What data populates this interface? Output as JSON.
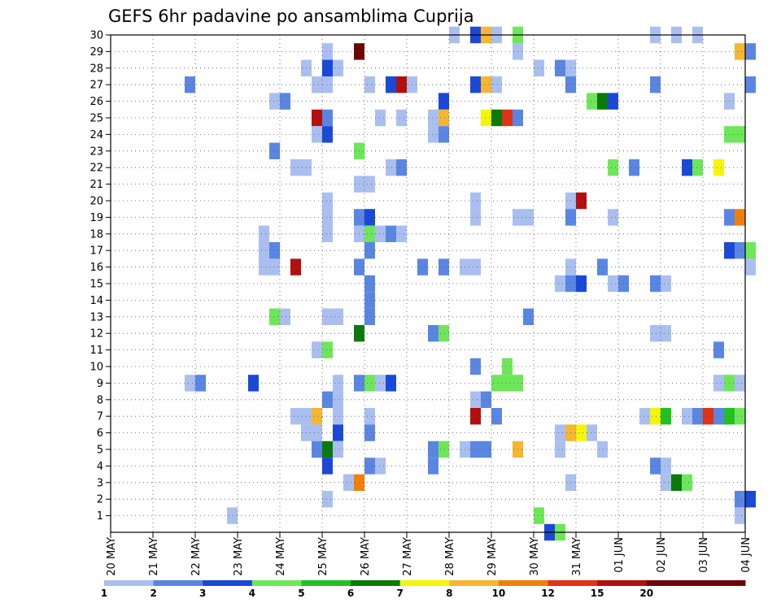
{
  "chart_data": {
    "type": "heatmap",
    "title": "GEFS 6hr padavine po ansamblima Cuprija",
    "xlabel": "",
    "ylabel": "",
    "x_tick_labels": [
      "20 MAY",
      "21 MAY",
      "22 MAY",
      "23 MAY",
      "24 MAY",
      "25 MAY",
      "26 MAY",
      "27 MAY",
      "28 MAY",
      "29 MAY",
      "30 MAY",
      "31 MAY",
      "01 JUN",
      "02 JUN",
      "03 JUN",
      "04 JUN"
    ],
    "x_range_days": [
      0,
      15
    ],
    "y_tick_labels": [
      "1",
      "2",
      "3",
      "4",
      "5",
      "6",
      "7",
      "8",
      "9",
      "10",
      "11",
      "12",
      "13",
      "14",
      "15",
      "16",
      "17",
      "18",
      "19",
      "20",
      "21",
      "22",
      "23",
      "24",
      "25",
      "26",
      "27",
      "28",
      "29",
      "30"
    ],
    "y_range": [
      0,
      30
    ],
    "grid": true,
    "legend": {
      "position": "bottom",
      "bins": [
        {
          "label": "1",
          "color": "#aabff0"
        },
        {
          "label": "2",
          "color": "#5a86e3"
        },
        {
          "label": "3",
          "color": "#1a48d8"
        },
        {
          "label": "4",
          "color": "#6ee65a"
        },
        {
          "label": "5",
          "color": "#1fc21f"
        },
        {
          "label": "6",
          "color": "#0a7a0a"
        },
        {
          "label": "7",
          "color": "#f5f50a"
        },
        {
          "label": "8",
          "color": "#f5b630"
        },
        {
          "label": "10",
          "color": "#f07f0a"
        },
        {
          "label": "12",
          "color": "#e03214"
        },
        {
          "label": "15",
          "color": "#b40f0f"
        },
        {
          "label": "20",
          "color": "#6e0505"
        },
        {
          "label": "",
          "color": "#6e0505"
        }
      ]
    },
    "cells": [
      [
        30,
        8.0,
        0
      ],
      [
        30,
        8.5,
        2
      ],
      [
        30,
        8.75,
        7
      ],
      [
        30,
        9.0,
        0
      ],
      [
        30,
        9.5,
        3
      ],
      [
        30,
        12.75,
        0
      ],
      [
        30,
        13.25,
        0
      ],
      [
        30,
        13.75,
        0
      ],
      [
        29,
        5.0,
        0
      ],
      [
        29,
        5.75,
        11
      ],
      [
        29,
        9.5,
        0
      ],
      [
        29,
        14.75,
        7
      ],
      [
        29,
        15.0,
        1
      ],
      [
        28,
        4.5,
        0
      ],
      [
        28,
        5.0,
        2
      ],
      [
        28,
        5.25,
        0
      ],
      [
        28,
        10.0,
        0
      ],
      [
        28,
        10.5,
        1
      ],
      [
        28,
        10.75,
        0
      ],
      [
        27,
        1.75,
        1
      ],
      [
        27,
        4.75,
        0
      ],
      [
        27,
        5.0,
        0
      ],
      [
        27,
        6.0,
        0
      ],
      [
        27,
        6.5,
        2
      ],
      [
        27,
        6.75,
        10
      ],
      [
        27,
        7.0,
        0
      ],
      [
        27,
        8.5,
        2
      ],
      [
        27,
        8.75,
        7
      ],
      [
        27,
        9.0,
        0
      ],
      [
        27,
        10.75,
        1
      ],
      [
        27,
        12.75,
        1
      ],
      [
        27,
        15.0,
        1
      ],
      [
        26,
        3.75,
        0
      ],
      [
        26,
        4.0,
        1
      ],
      [
        26,
        7.75,
        2
      ],
      [
        26,
        11.25,
        3
      ],
      [
        26,
        11.5,
        5
      ],
      [
        26,
        11.75,
        2
      ],
      [
        26,
        14.5,
        0
      ],
      [
        25,
        4.75,
        10
      ],
      [
        25,
        5.0,
        1
      ],
      [
        25,
        6.25,
        0
      ],
      [
        25,
        6.75,
        0
      ],
      [
        25,
        7.5,
        0
      ],
      [
        25,
        7.75,
        7
      ],
      [
        25,
        8.75,
        6
      ],
      [
        25,
        9.0,
        5
      ],
      [
        25,
        9.25,
        9
      ],
      [
        25,
        9.5,
        1
      ],
      [
        24,
        4.75,
        0
      ],
      [
        24,
        5.0,
        2
      ],
      [
        24,
        7.5,
        0
      ],
      [
        24,
        7.75,
        1
      ],
      [
        24,
        14.5,
        3
      ],
      [
        24,
        14.75,
        3
      ],
      [
        23,
        3.75,
        1
      ],
      [
        23,
        5.75,
        3
      ],
      [
        22,
        4.25,
        0
      ],
      [
        22,
        4.5,
        0
      ],
      [
        22,
        6.5,
        0
      ],
      [
        22,
        6.75,
        1
      ],
      [
        22,
        11.75,
        3
      ],
      [
        22,
        12.25,
        1
      ],
      [
        22,
        13.5,
        2
      ],
      [
        22,
        13.75,
        3
      ],
      [
        22,
        14.25,
        6
      ],
      [
        21,
        5.75,
        0
      ],
      [
        21,
        6.0,
        0
      ],
      [
        20,
        5.0,
        0
      ],
      [
        20,
        8.5,
        0
      ],
      [
        20,
        10.75,
        0
      ],
      [
        20,
        11.0,
        10
      ],
      [
        19,
        5.0,
        0
      ],
      [
        19,
        5.75,
        1
      ],
      [
        19,
        6.0,
        2
      ],
      [
        19,
        8.5,
        0
      ],
      [
        19,
        9.5,
        0
      ],
      [
        19,
        9.75,
        0
      ],
      [
        19,
        10.75,
        1
      ],
      [
        19,
        11.75,
        0
      ],
      [
        19,
        14.5,
        1
      ],
      [
        19,
        14.75,
        8
      ],
      [
        18,
        3.5,
        0
      ],
      [
        18,
        5.0,
        0
      ],
      [
        18,
        5.75,
        0
      ],
      [
        18,
        6.0,
        3
      ],
      [
        18,
        6.25,
        0
      ],
      [
        18,
        6.5,
        1
      ],
      [
        18,
        6.75,
        0
      ],
      [
        17,
        3.5,
        0
      ],
      [
        17,
        3.75,
        1
      ],
      [
        17,
        6.0,
        1
      ],
      [
        17,
        14.5,
        2
      ],
      [
        17,
        14.75,
        1
      ],
      [
        17,
        15.0,
        3
      ],
      [
        16,
        3.5,
        0
      ],
      [
        16,
        3.75,
        0
      ],
      [
        16,
        4.25,
        10
      ],
      [
        16,
        5.75,
        1
      ],
      [
        16,
        7.25,
        1
      ],
      [
        16,
        7.75,
        1
      ],
      [
        16,
        8.25,
        0
      ],
      [
        16,
        8.5,
        0
      ],
      [
        16,
        10.75,
        0
      ],
      [
        16,
        11.5,
        1
      ],
      [
        16,
        15.0,
        0
      ],
      [
        15,
        6.0,
        1
      ],
      [
        15,
        10.5,
        0
      ],
      [
        15,
        10.75,
        1
      ],
      [
        15,
        11.0,
        2
      ],
      [
        15,
        11.75,
        0
      ],
      [
        15,
        12.0,
        1
      ],
      [
        15,
        12.75,
        1
      ],
      [
        15,
        13.0,
        0
      ],
      [
        14,
        6.0,
        1
      ],
      [
        13,
        3.75,
        3
      ],
      [
        13,
        4.0,
        0
      ],
      [
        13,
        5.0,
        0
      ],
      [
        13,
        5.25,
        0
      ],
      [
        13,
        6.0,
        1
      ],
      [
        13,
        9.75,
        1
      ],
      [
        12,
        5.75,
        5
      ],
      [
        12,
        7.5,
        1
      ],
      [
        12,
        7.75,
        3
      ],
      [
        12,
        12.75,
        0
      ],
      [
        12,
        13.0,
        0
      ],
      [
        11,
        4.75,
        0
      ],
      [
        11,
        5.0,
        3
      ],
      [
        11,
        14.25,
        1
      ],
      [
        10,
        8.5,
        1
      ],
      [
        10,
        9.25,
        3
      ],
      [
        9,
        1.75,
        0
      ],
      [
        9,
        2.0,
        1
      ],
      [
        9,
        3.25,
        2
      ],
      [
        9,
        5.25,
        0
      ],
      [
        9,
        5.75,
        1
      ],
      [
        9,
        6.0,
        3
      ],
      [
        9,
        6.25,
        0
      ],
      [
        9,
        6.5,
        2
      ],
      [
        9,
        9.0,
        3
      ],
      [
        9,
        9.25,
        3
      ],
      [
        9,
        9.5,
        3
      ],
      [
        9,
        14.25,
        0
      ],
      [
        9,
        14.5,
        3
      ],
      [
        9,
        14.75,
        0
      ],
      [
        8,
        5.0,
        1
      ],
      [
        8,
        5.25,
        0
      ],
      [
        8,
        8.5,
        0
      ],
      [
        8,
        8.75,
        1
      ],
      [
        7,
        4.25,
        0
      ],
      [
        7,
        4.5,
        0
      ],
      [
        7,
        4.75,
        7
      ],
      [
        7,
        5.25,
        0
      ],
      [
        7,
        6.0,
        0
      ],
      [
        7,
        8.5,
        10
      ],
      [
        7,
        9.0,
        1
      ],
      [
        7,
        12.5,
        0
      ],
      [
        7,
        12.75,
        6
      ],
      [
        7,
        13.0,
        4
      ],
      [
        7,
        13.5,
        0
      ],
      [
        7,
        13.75,
        1
      ],
      [
        7,
        14.0,
        9
      ],
      [
        7,
        14.25,
        1
      ],
      [
        7,
        14.5,
        4
      ],
      [
        7,
        14.75,
        3
      ],
      [
        6,
        4.5,
        0
      ],
      [
        6,
        4.75,
        0
      ],
      [
        6,
        5.25,
        2
      ],
      [
        6,
        6.0,
        1
      ],
      [
        6,
        10.5,
        0
      ],
      [
        6,
        10.75,
        7
      ],
      [
        6,
        11.0,
        6
      ],
      [
        6,
        11.25,
        0
      ],
      [
        5,
        4.75,
        1
      ],
      [
        5,
        5.0,
        5
      ],
      [
        5,
        5.25,
        0
      ],
      [
        5,
        7.5,
        1
      ],
      [
        5,
        7.75,
        3
      ],
      [
        5,
        8.25,
        0
      ],
      [
        5,
        8.5,
        1
      ],
      [
        5,
        8.75,
        1
      ],
      [
        5,
        9.5,
        7
      ],
      [
        5,
        10.5,
        0
      ],
      [
        5,
        11.5,
        0
      ],
      [
        4,
        5.0,
        2
      ],
      [
        4,
        6.0,
        1
      ],
      [
        4,
        6.25,
        0
      ],
      [
        4,
        7.5,
        1
      ],
      [
        4,
        12.75,
        1
      ],
      [
        4,
        13.0,
        0
      ],
      [
        3,
        5.5,
        0
      ],
      [
        3,
        5.75,
        8
      ],
      [
        3,
        10.75,
        0
      ],
      [
        3,
        13.0,
        0
      ],
      [
        3,
        13.25,
        5
      ],
      [
        3,
        13.5,
        3
      ],
      [
        2,
        5.0,
        0
      ],
      [
        2,
        14.75,
        1
      ],
      [
        2,
        15.0,
        2
      ],
      [
        1,
        2.75,
        0
      ],
      [
        1,
        10.0,
        3
      ],
      [
        1,
        14.75,
        0
      ],
      [
        0,
        10.25,
        2
      ],
      [
        0,
        10.5,
        3
      ]
    ]
  }
}
